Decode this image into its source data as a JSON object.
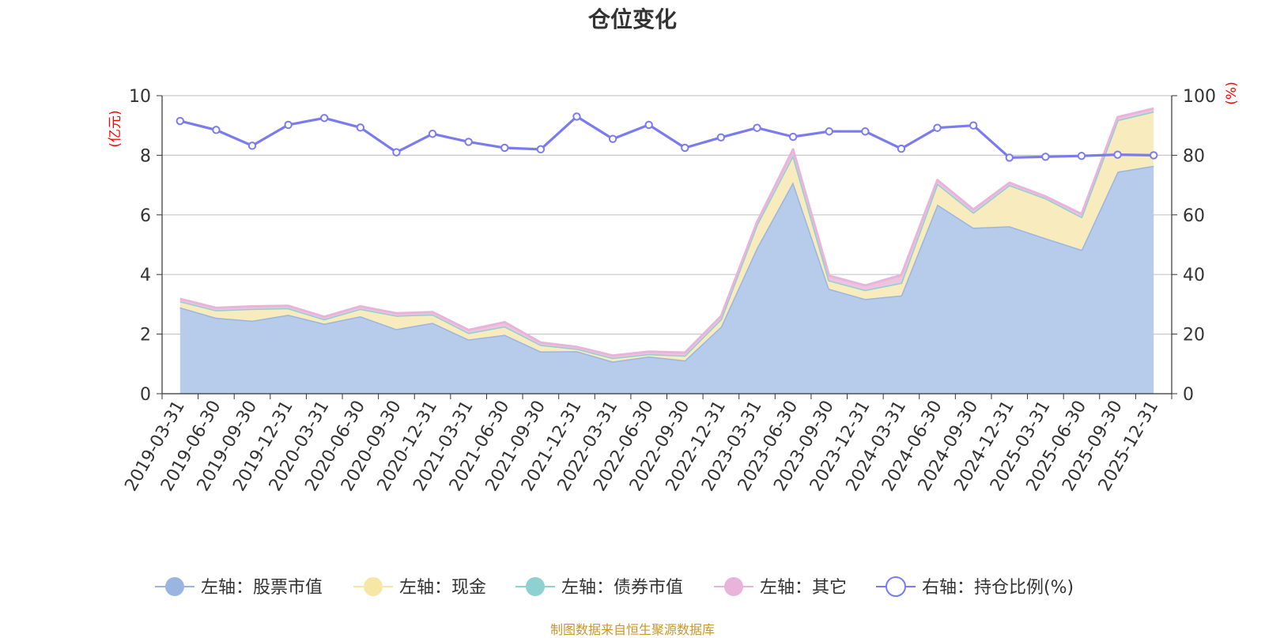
{
  "chart_data": {
    "type": "area",
    "title": "仓位变化",
    "left_axis_unit": "(亿元)",
    "right_axis_unit": "(%)",
    "left_ylim": [
      0,
      10
    ],
    "left_ticks": [
      0,
      2,
      4,
      6,
      8,
      10
    ],
    "right_ylim": [
      0,
      100
    ],
    "right_ticks": [
      0,
      20,
      40,
      60,
      80,
      100
    ],
    "categories": [
      "2019-03-31",
      "2019-06-30",
      "2019-09-30",
      "2019-12-31",
      "2020-03-31",
      "2020-06-30",
      "2020-09-30",
      "2020-12-31",
      "2021-03-31",
      "2021-06-30",
      "2021-09-30",
      "2021-12-31",
      "2022-03-31",
      "2022-06-30",
      "2022-09-30",
      "2022-12-31",
      "2023-03-31",
      "2023-06-30",
      "2023-09-30",
      "2023-12-31",
      "2024-03-31",
      "2024-06-30",
      "2024-09-30",
      "2024-12-31",
      "2025-03-31",
      "2025-06-30",
      "2025-09-30",
      "2025-12-31"
    ],
    "series": [
      {
        "name": "左轴：股票市值",
        "axis": "left",
        "color": "#9ab6e0",
        "fill": "#b7cbea",
        "values": [
          2.9,
          2.55,
          2.45,
          2.65,
          2.35,
          2.6,
          2.17,
          2.38,
          1.82,
          1.98,
          1.42,
          1.43,
          1.08,
          1.25,
          1.12,
          2.25,
          4.9,
          7.1,
          3.52,
          3.18,
          3.3,
          6.35,
          5.57,
          5.62,
          5.22,
          4.83,
          7.45,
          7.65
        ]
      },
      {
        "name": "左轴：现金",
        "axis": "left",
        "color": "#f6e7a7",
        "fill": "#f8ebbd",
        "values": [
          0.2,
          0.25,
          0.4,
          0.22,
          0.15,
          0.25,
          0.45,
          0.28,
          0.22,
          0.28,
          0.22,
          0.08,
          0.12,
          0.08,
          0.16,
          0.25,
          0.78,
          0.9,
          0.28,
          0.3,
          0.42,
          0.7,
          0.51,
          1.38,
          1.34,
          1.1,
          1.73,
          1.82
        ]
      },
      {
        "name": "左轴：债券市值",
        "axis": "left",
        "color": "#8fd0d0",
        "fill": "#a9dcdc",
        "values": [
          0,
          0,
          0,
          0,
          0,
          0,
          0,
          0,
          0,
          0,
          0,
          0,
          0,
          0,
          0,
          0,
          0,
          0,
          0,
          0,
          0,
          0,
          0,
          0,
          0,
          0,
          0,
          0
        ]
      },
      {
        "name": "左轴：其它",
        "axis": "left",
        "color": "#e8b4d9",
        "fill": "#ecc3e0",
        "values": [
          0.08,
          0.08,
          0.08,
          0.08,
          0.08,
          0.08,
          0.08,
          0.08,
          0.1,
          0.14,
          0.08,
          0.06,
          0.08,
          0.08,
          0.1,
          0.1,
          0.08,
          0.2,
          0.16,
          0.15,
          0.26,
          0.12,
          0.1,
          0.08,
          0.06,
          0.1,
          0.1,
          0.1
        ]
      },
      {
        "name": "右轴：持仓比例(%)",
        "axis": "right",
        "color": "#7b7bf0",
        "values": [
          91.5,
          88.5,
          83.2,
          90.2,
          92.5,
          89.3,
          81,
          87.2,
          84.5,
          82.5,
          82,
          93,
          85.5,
          90.2,
          82.5,
          86,
          89.2,
          86.2,
          88,
          88,
          82.2,
          89.2,
          90,
          79.2,
          79.5,
          79.8,
          80.2,
          80
        ]
      }
    ]
  },
  "footer": {
    "source": "制图数据来自恒生聚源数据库"
  }
}
